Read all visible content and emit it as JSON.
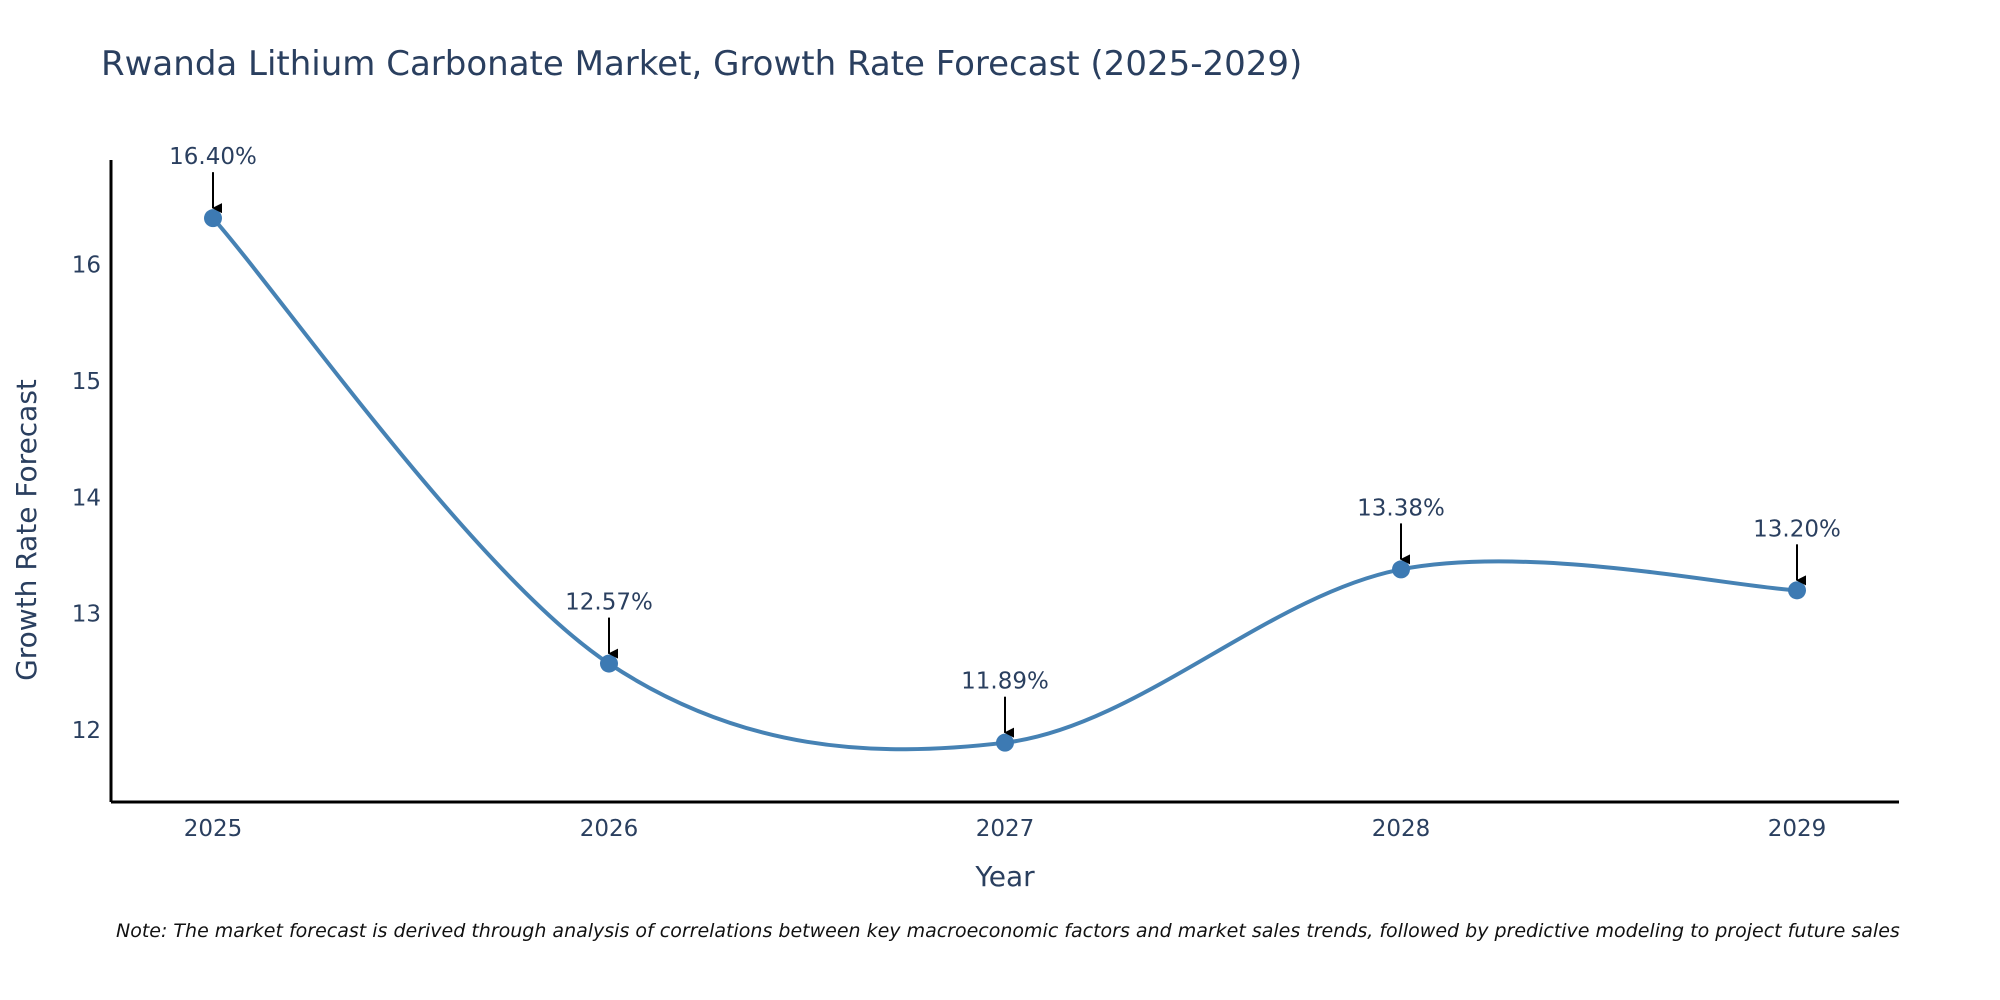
{
  "chart_data": {
    "type": "line",
    "title": "Rwanda Lithium Carbonate Market, Growth Rate Forecast (2025-2029)",
    "xlabel": "Year",
    "ylabel": "Growth Rate Forecast",
    "categories": [
      "2025",
      "2026",
      "2027",
      "2028",
      "2029"
    ],
    "series": [
      {
        "name": "Growth Rate Forecast",
        "values": [
          16.4,
          12.57,
          11.89,
          13.38,
          13.2
        ]
      }
    ],
    "data_labels": [
      "16.40%",
      "12.57%",
      "11.89%",
      "13.38%",
      "13.20%"
    ],
    "y_ticks": [
      12,
      13,
      14,
      15,
      16
    ],
    "y_tick_labels": [
      "12",
      "13",
      "14",
      "15",
      "16"
    ],
    "ylim": [
      11.38,
      16.9
    ],
    "grid": false,
    "line_shape": "spline",
    "line_color": "#4682b4",
    "marker_color": "#3d7ab3",
    "axis_color": "#000000",
    "text_color": "#2a3f5f",
    "note": "Note: The market forecast is derived through analysis of correlations between key macroeconomic factors and market sales trends, followed by predictive modeling to project future sales"
  }
}
